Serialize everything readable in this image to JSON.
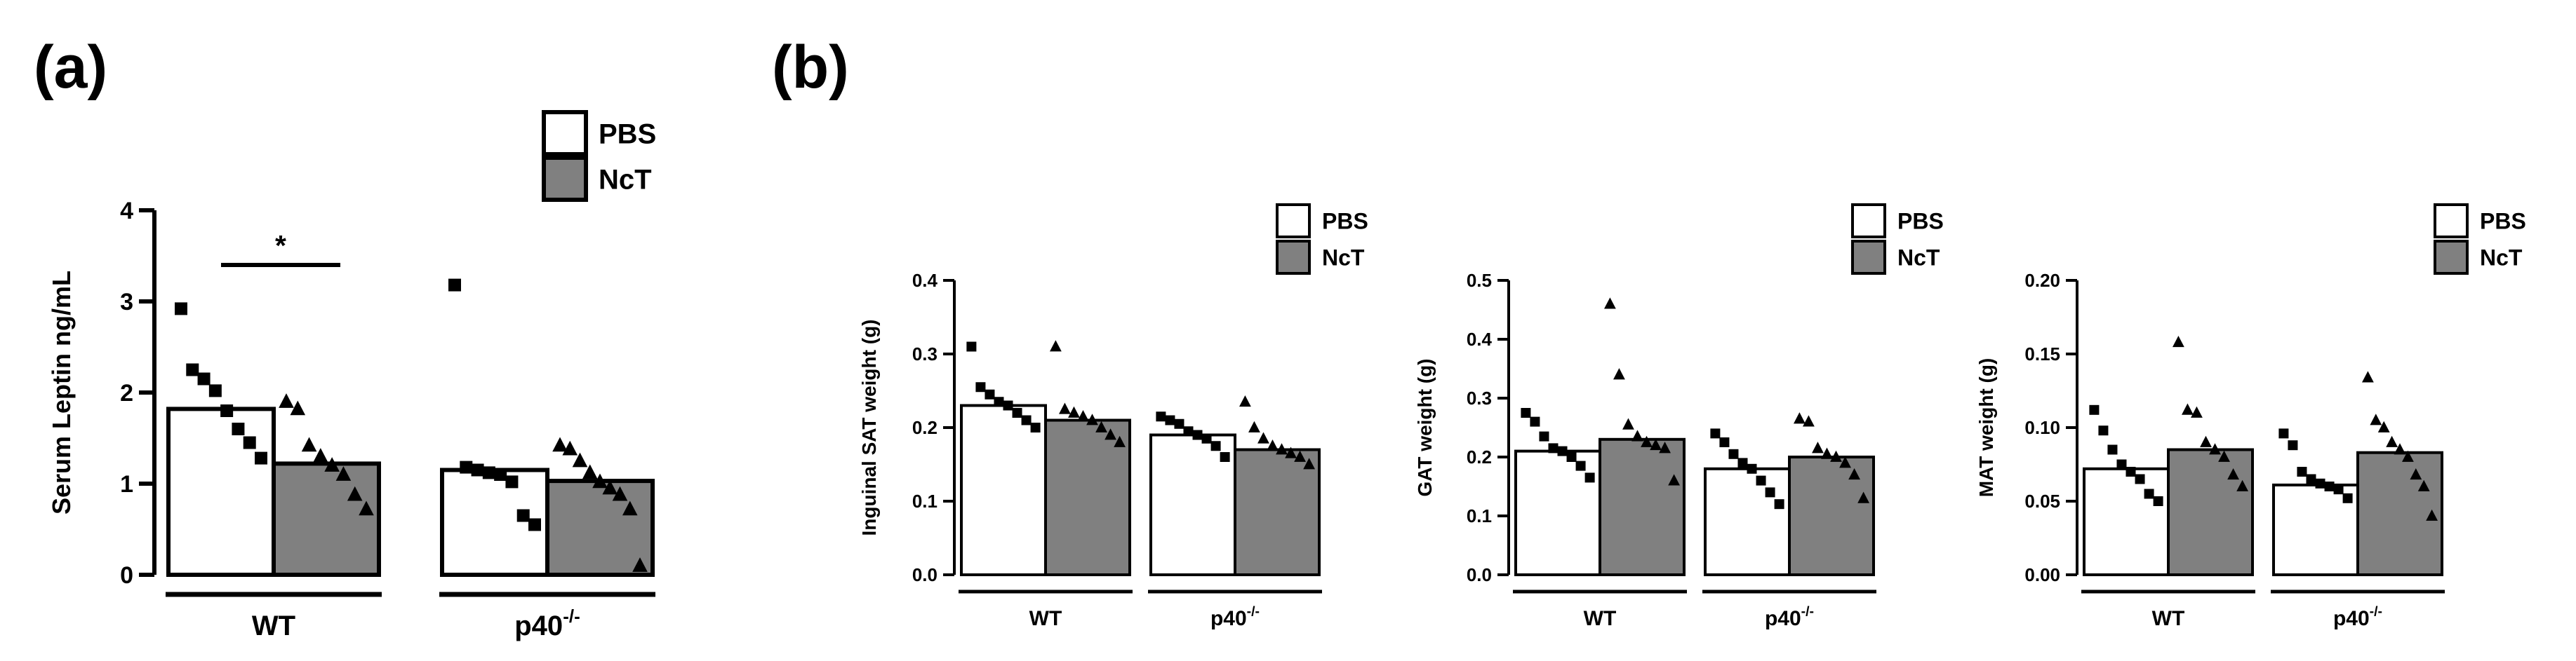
{
  "panel_labels": {
    "a": "(a)",
    "b": "(b)"
  },
  "colors": {
    "pbs": "#ffffff",
    "nct": "#808080",
    "stroke": "#000000"
  },
  "chart_data": [
    {
      "id": "leptin",
      "type": "bar",
      "ylabel": "Serum Leptin ng/mL",
      "ylim": [
        0,
        4
      ],
      "yticks": [
        "0",
        "1",
        "2",
        "3",
        "4"
      ],
      "groups": [
        "WT",
        "p40⁻/⁻"
      ],
      "group_base": [
        "WT",
        "p40"
      ],
      "group_sup": [
        "",
        "-/-"
      ],
      "series": [
        {
          "name": "PBS",
          "marker": "square",
          "values": [
            1.82,
            1.15
          ],
          "points": [
            [
              2.92,
              2.25,
              2.15,
              2.02,
              1.8,
              1.6,
              1.45,
              1.28
            ],
            [
              3.18,
              1.18,
              1.15,
              1.12,
              1.1,
              1.02,
              0.65,
              0.55
            ]
          ]
        },
        {
          "name": "NcT",
          "marker": "triangle",
          "values": [
            1.22,
            1.03
          ],
          "points": [
            [
              1.9,
              1.82,
              1.42,
              1.3,
              1.2,
              1.1,
              0.88,
              0.72
            ],
            [
              1.42,
              1.38,
              1.25,
              1.12,
              1.02,
              0.95,
              0.88,
              0.72,
              0.1
            ]
          ]
        }
      ],
      "legend": [
        "PBS",
        "NcT"
      ],
      "annotation": {
        "text": "*",
        "between": "WT PBS vs NcT"
      }
    },
    {
      "id": "inguinal_sat",
      "type": "bar",
      "ylabel": "Inguinal SAT weight (g)",
      "ylim": [
        0,
        0.4
      ],
      "yticks": [
        "0.0",
        "0.1",
        "0.2",
        "0.3",
        "0.4"
      ],
      "groups": [
        "WT",
        "p40⁻/⁻"
      ],
      "group_base": [
        "WT",
        "p40"
      ],
      "group_sup": [
        "",
        "-/-"
      ],
      "series": [
        {
          "name": "PBS",
          "marker": "square",
          "values": [
            0.23,
            0.19
          ],
          "points": [
            [
              0.31,
              0.255,
              0.245,
              0.235,
              0.23,
              0.22,
              0.21,
              0.2
            ],
            [
              0.215,
              0.21,
              0.205,
              0.195,
              0.19,
              0.185,
              0.175,
              0.16
            ]
          ]
        },
        {
          "name": "NcT",
          "marker": "triangle",
          "values": [
            0.21,
            0.17
          ],
          "points": [
            [
              0.31,
              0.225,
              0.22,
              0.215,
              0.21,
              0.2,
              0.19,
              0.18
            ],
            [
              0.235,
              0.2,
              0.185,
              0.175,
              0.17,
              0.165,
              0.16,
              0.15
            ]
          ]
        }
      ],
      "legend": [
        "PBS",
        "NcT"
      ]
    },
    {
      "id": "gat",
      "type": "bar",
      "ylabel": "GAT weight (g)",
      "ylim": [
        0,
        0.5
      ],
      "yticks": [
        "0.0",
        "0.1",
        "0.2",
        "0.3",
        "0.4",
        "0.5"
      ],
      "groups": [
        "WT",
        "p40⁻/⁻"
      ],
      "group_base": [
        "WT",
        "p40"
      ],
      "group_sup": [
        "",
        "-/-"
      ],
      "series": [
        {
          "name": "PBS",
          "marker": "square",
          "values": [
            0.21,
            0.18
          ],
          "points": [
            [
              0.275,
              0.26,
              0.235,
              0.215,
              0.21,
              0.2,
              0.185,
              0.165
            ],
            [
              0.24,
              0.225,
              0.205,
              0.19,
              0.18,
              0.16,
              0.14,
              0.12
            ]
          ]
        },
        {
          "name": "NcT",
          "marker": "triangle",
          "values": [
            0.23,
            0.2
          ],
          "points": [
            [
              0.46,
              0.34,
              0.255,
              0.235,
              0.225,
              0.22,
              0.215,
              0.16
            ],
            [
              0.265,
              0.26,
              0.215,
              0.205,
              0.2,
              0.19,
              0.17,
              0.13
            ]
          ]
        }
      ],
      "legend": [
        "PBS",
        "NcT"
      ]
    },
    {
      "id": "mat",
      "type": "bar",
      "ylabel": "MAT weight (g)",
      "ylim": [
        0,
        0.2
      ],
      "yticks": [
        "0.00",
        "0.05",
        "0.10",
        "0.15",
        "0.20"
      ],
      "groups": [
        "WT",
        "p40⁻/⁻"
      ],
      "group_base": [
        "WT",
        "p40"
      ],
      "group_sup": [
        "",
        "-/-"
      ],
      "series": [
        {
          "name": "PBS",
          "marker": "square",
          "values": [
            0.072,
            0.061
          ],
          "points": [
            [
              0.112,
              0.098,
              0.085,
              0.075,
              0.07,
              0.065,
              0.055,
              0.05
            ],
            [
              0.096,
              0.088,
              0.07,
              0.065,
              0.062,
              0.06,
              0.058,
              0.052
            ]
          ]
        },
        {
          "name": "NcT",
          "marker": "triangle",
          "values": [
            0.085,
            0.083
          ],
          "points": [
            [
              0.158,
              0.112,
              0.11,
              0.09,
              0.085,
              0.08,
              0.068,
              0.06
            ],
            [
              0.134,
              0.105,
              0.1,
              0.09,
              0.085,
              0.08,
              0.068,
              0.06,
              0.04
            ]
          ]
        }
      ],
      "legend": [
        "PBS",
        "NcT"
      ]
    }
  ]
}
